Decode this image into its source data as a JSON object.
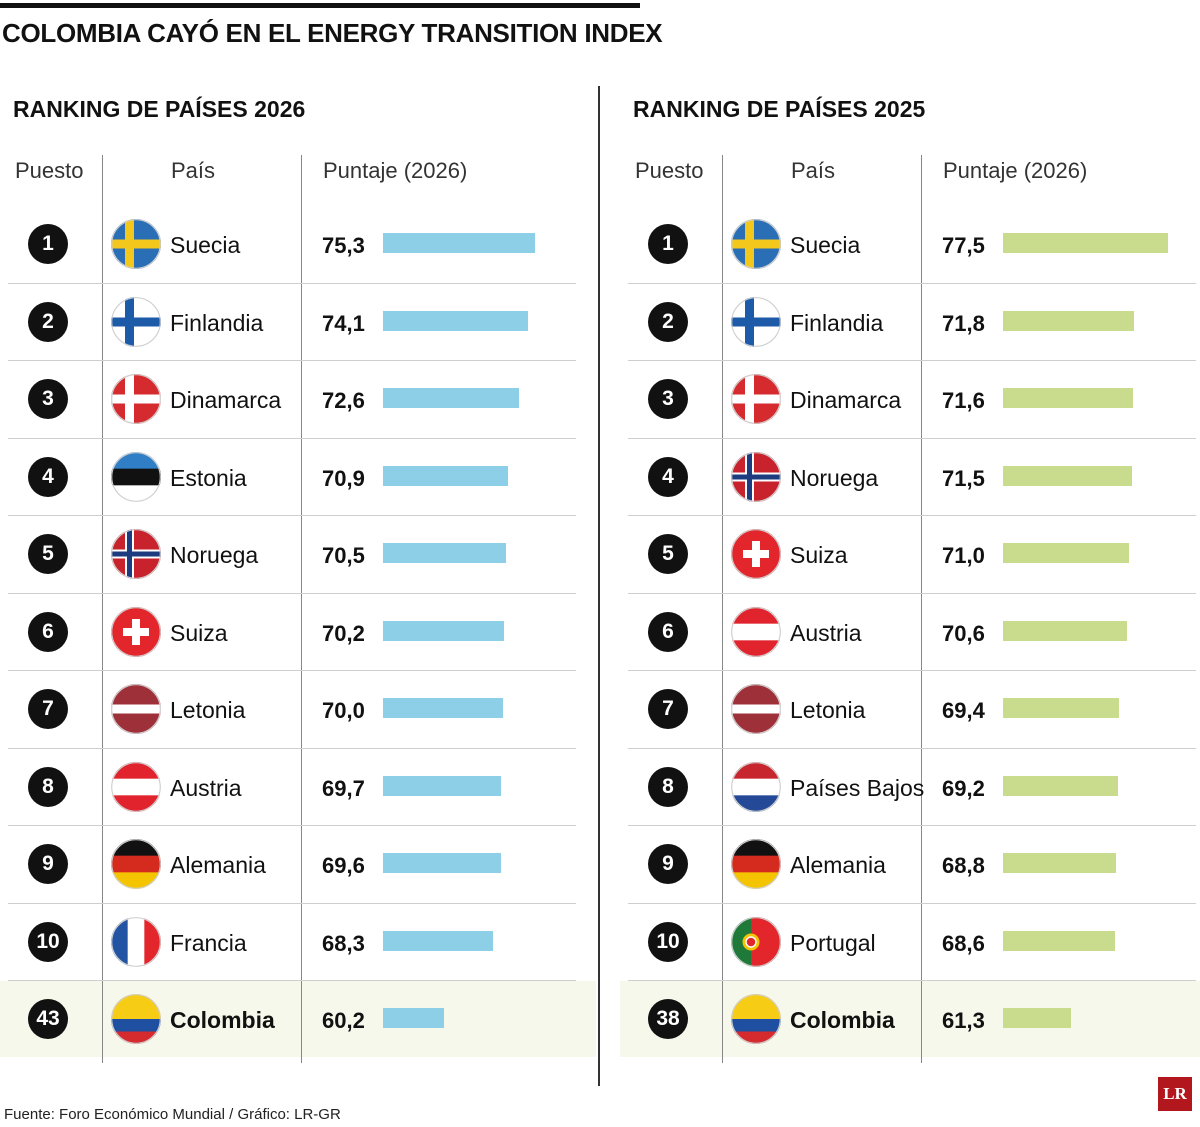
{
  "title": "COLOMBIA CAYÓ EN EL ENERGY TRANSITION INDEX",
  "source": "Fuente: Foro Económico Mundial / Gráfico: LR-GR",
  "logo_text": "LR",
  "colors": {
    "bar_2026": "#8ccfe6",
    "bar_2025": "#c9dc8e",
    "highlight_row": "#f7f8ec",
    "badge": "#111111",
    "logo": "#b3171e"
  },
  "chart_data": [
    {
      "type": "bar",
      "title": "RANKING DE PAÍSES 2026",
      "columns": {
        "rank": "Puesto",
        "country": "País",
        "score": "Puntaje (2026)"
      },
      "rows": [
        {
          "rank": "1",
          "country": "Suecia",
          "flag": "sweden-flag-icon",
          "score": "75,3",
          "value": 75.3
        },
        {
          "rank": "2",
          "country": "Finlandia",
          "flag": "finland-flag-icon",
          "score": "74,1",
          "value": 74.1
        },
        {
          "rank": "3",
          "country": "Dinamarca",
          "flag": "denmark-flag-icon",
          "score": "72,6",
          "value": 72.6
        },
        {
          "rank": "4",
          "country": "Estonia",
          "flag": "estonia-flag-icon",
          "score": "70,9",
          "value": 70.9
        },
        {
          "rank": "5",
          "country": "Noruega",
          "flag": "norway-flag-icon",
          "score": "70,5",
          "value": 70.5
        },
        {
          "rank": "6",
          "country": "Suiza",
          "flag": "switzerland-flag-icon",
          "score": "70,2",
          "value": 70.2
        },
        {
          "rank": "7",
          "country": "Letonia",
          "flag": "latvia-flag-icon",
          "score": "70,0",
          "value": 70.0
        },
        {
          "rank": "8",
          "country": "Austria",
          "flag": "austria-flag-icon",
          "score": "69,7",
          "value": 69.7
        },
        {
          "rank": "9",
          "country": "Alemania",
          "flag": "germany-flag-icon",
          "score": "69,6",
          "value": 69.6
        },
        {
          "rank": "10",
          "country": "Francia",
          "flag": "france-flag-icon",
          "score": "68,3",
          "value": 68.3
        },
        {
          "rank": "43",
          "country": "Colombia",
          "flag": "colombia-flag-icon",
          "score": "60,2",
          "value": 60.2,
          "highlight": true
        }
      ]
    },
    {
      "type": "bar",
      "title": "RANKING DE PAÍSES 2025",
      "columns": {
        "rank": "Puesto",
        "country": "País",
        "score": "Puntaje (2026)"
      },
      "rows": [
        {
          "rank": "1",
          "country": "Suecia",
          "flag": "sweden-flag-icon",
          "score": "77,5",
          "value": 77.5
        },
        {
          "rank": "2",
          "country": "Finlandia",
          "flag": "finland-flag-icon",
          "score": "71,8",
          "value": 71.8
        },
        {
          "rank": "3",
          "country": "Dinamarca",
          "flag": "denmark-flag-icon",
          "score": "71,6",
          "value": 71.6
        },
        {
          "rank": "4",
          "country": "Noruega",
          "flag": "norway-flag-icon",
          "score": "71,5",
          "value": 71.5
        },
        {
          "rank": "5",
          "country": "Suiza",
          "flag": "switzerland-flag-icon",
          "score": "71,0",
          "value": 71.0
        },
        {
          "rank": "6",
          "country": "Austria",
          "flag": "austria-flag-icon",
          "score": "70,6",
          "value": 70.6
        },
        {
          "rank": "7",
          "country": "Letonia",
          "flag": "latvia-flag-icon",
          "score": "69,4",
          "value": 69.4
        },
        {
          "rank": "8",
          "country": "Países Bajos",
          "flag": "netherlands-flag-icon",
          "score": "69,2",
          "value": 69.2
        },
        {
          "rank": "9",
          "country": "Alemania",
          "flag": "germany-flag-icon",
          "score": "68,8",
          "value": 68.8
        },
        {
          "rank": "10",
          "country": "Portugal",
          "flag": "portugal-flag-icon",
          "score": "68,6",
          "value": 68.6
        },
        {
          "rank": "38",
          "country": "Colombia",
          "flag": "colombia-flag-icon",
          "score": "61,3",
          "value": 61.3,
          "highlight": true
        }
      ]
    }
  ]
}
